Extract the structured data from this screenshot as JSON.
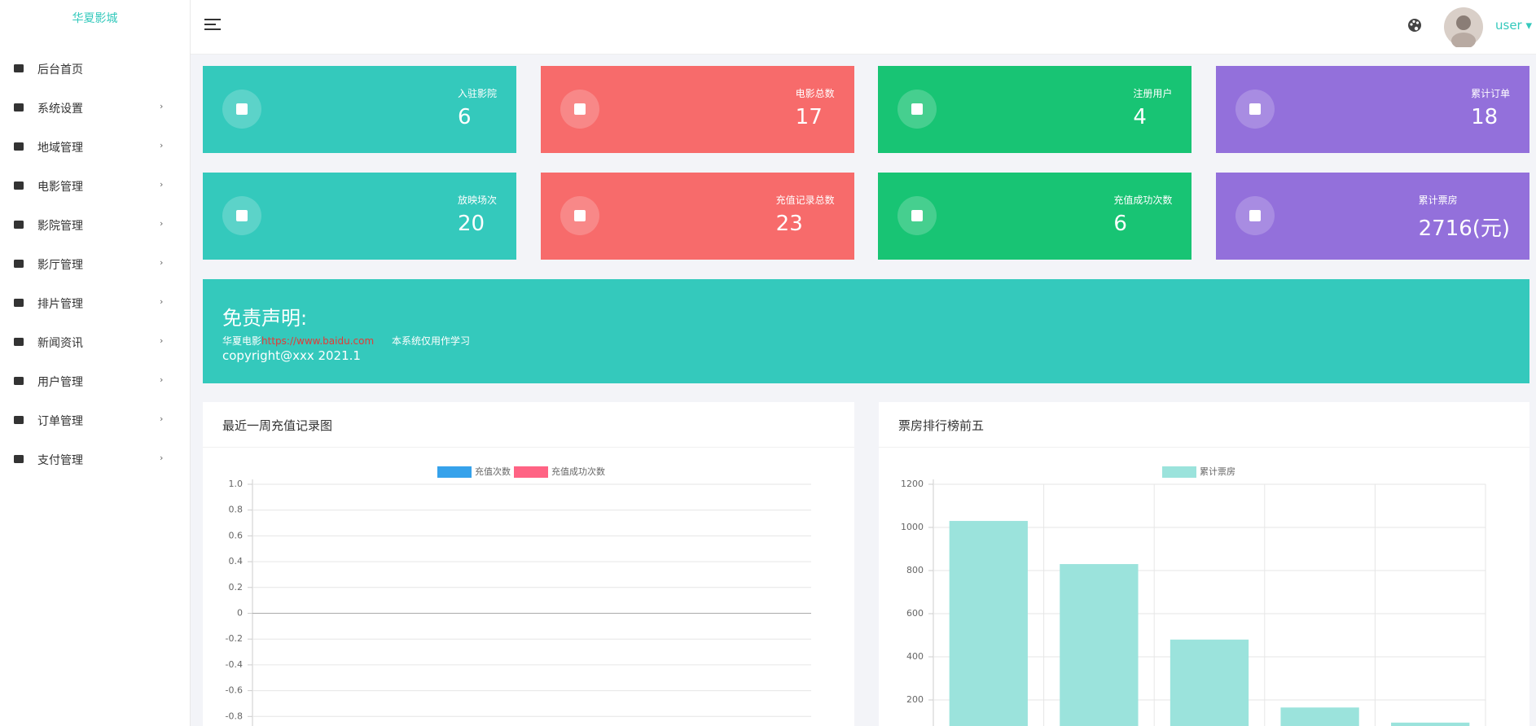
{
  "sidebar": {
    "logo": "华夏影城",
    "menu": [
      "后台首页",
      "系统设置",
      "地域管理",
      "电影管理",
      "影院管理",
      "影厅管理",
      "排片管理",
      "新闻资讯",
      "用户管理",
      "订单管理",
      "支付管理"
    ]
  },
  "header": {
    "user": "user"
  },
  "stats": [
    {
      "label": "入驻影院",
      "value": "6"
    },
    {
      "label": "电影总数",
      "value": "17"
    },
    {
      "label": "注册用户",
      "value": "4"
    },
    {
      "label": "累计订单",
      "value": "18"
    },
    {
      "label": "放映场次",
      "value": "20"
    },
    {
      "label": "充值记录总数",
      "value": "23"
    },
    {
      "label": "充值成功次数",
      "value": "6"
    },
    {
      "label": "累计票房",
      "value": "2716(元)"
    }
  ],
  "disclaimer": {
    "title": "免责声明:",
    "site": "华夏电影",
    "url": "https://www.baidu.com",
    "note": "本系统仅用作学习",
    "copyright": "copyright@xxx 2021.1"
  },
  "chart_data": [
    {
      "type": "line",
      "title": "最近一周充值记录图",
      "series": [
        {
          "name": "充值次数",
          "color": "#36a2eb",
          "values": []
        },
        {
          "name": "充值成功次数",
          "color": "#ff6384",
          "values": []
        }
      ],
      "ylim": [
        -1,
        1
      ],
      "yticks": [
        {
          "value": 1,
          "label": "1.0"
        },
        0.8,
        0.6,
        0.4,
        0.2,
        0,
        -0.2,
        -0.4,
        -0.6,
        -0.8
      ],
      "grid": true
    },
    {
      "type": "bar",
      "title": "票房排行榜前五",
      "categories": [
        null,
        null,
        null,
        null,
        null
      ],
      "series": [
        {
          "name": "累计票房",
          "color": "#9be3dc",
          "values": [
            1030,
            830,
            480,
            165,
            95
          ]
        }
      ],
      "ylim": [
        0,
        1200
      ],
      "yticks": [
        200,
        400,
        600,
        800,
        1000,
        1200
      ],
      "grid": true
    }
  ]
}
